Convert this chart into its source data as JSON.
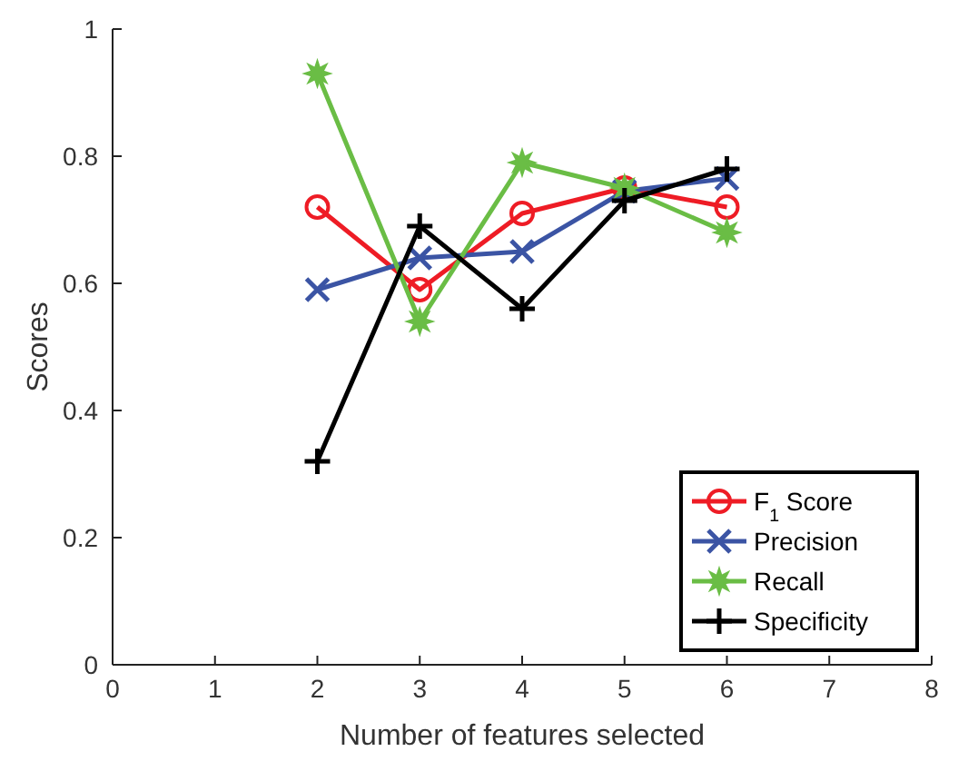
{
  "chart_data": {
    "type": "line",
    "xlabel": "Number of features selected",
    "ylabel": "Scores",
    "x": [
      2,
      3,
      4,
      5,
      6
    ],
    "xlim": [
      0,
      8
    ],
    "xticks": [
      0,
      1,
      2,
      3,
      4,
      5,
      6,
      7,
      8
    ],
    "ylim": [
      0,
      1
    ],
    "yticks": [
      0,
      0.2,
      0.4,
      0.6,
      0.8,
      1
    ],
    "grid": false,
    "legend": "bottom right",
    "line_style": "solid",
    "series": [
      {
        "name": "F$_{1}$ Score",
        "color": "#ee1c25",
        "marker": "circle",
        "values": [
          0.72,
          0.59,
          0.71,
          0.75,
          0.72
        ]
      },
      {
        "name": "Precision",
        "color": "#3b54a4",
        "marker": "cross",
        "values": [
          0.59,
          0.64,
          0.65,
          0.745,
          0.765
        ]
      },
      {
        "name": "Recall",
        "color": "#6abd45",
        "marker": "star",
        "values": [
          0.93,
          0.54,
          0.79,
          0.75,
          0.68
        ]
      },
      {
        "name": "Specificity",
        "color": "#000000",
        "marker": "plus",
        "values": [
          0.32,
          0.69,
          0.56,
          0.73,
          0.78
        ]
      }
    ]
  }
}
